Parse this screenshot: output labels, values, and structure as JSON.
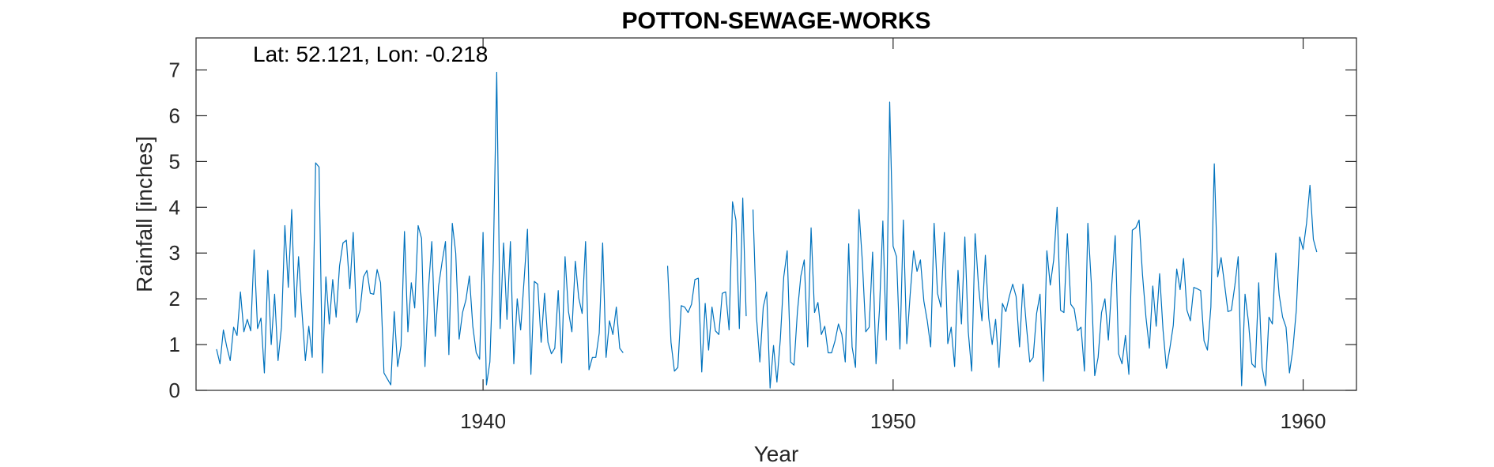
{
  "chart_data": {
    "type": "line",
    "title": "POTTON-SEWAGE-WORKS",
    "annotation": "Lat: 52.121, Lon: -0.218",
    "xlabel": "Year",
    "ylabel": "Rainfall [inches]",
    "xlim": [
      1933.0,
      1961.3
    ],
    "ylim": [
      0,
      7.7
    ],
    "x_ticks": [
      1940,
      1950,
      1960
    ],
    "x_tick_labels": [
      "1940",
      "1950",
      "1960"
    ],
    "y_ticks": [
      0,
      1,
      2,
      3,
      4,
      5,
      6,
      7
    ],
    "y_tick_labels": [
      "0",
      "1",
      "2",
      "3",
      "4",
      "5",
      "6",
      "7"
    ],
    "grid": false,
    "series": [
      {
        "color": "#0072BD",
        "segments": [
          {
            "x_start": 1933.5,
            "x_step": 0.08333,
            "values": [
              0.9,
              0.58,
              1.32,
              0.95,
              0.65,
              1.38,
              1.2,
              2.15,
              1.28,
              1.55,
              1.3,
              3.07,
              1.35,
              1.58,
              0.38,
              2.62,
              1.0,
              2.1,
              0.65,
              1.38,
              3.6,
              2.25,
              3.95,
              1.6,
              2.92,
              1.72,
              0.65,
              1.4,
              0.72,
              4.97,
              4.88,
              0.38,
              2.48,
              1.45,
              2.42,
              1.6,
              2.72,
              3.22,
              3.28,
              2.22,
              3.45,
              1.48,
              1.75,
              2.48,
              2.62,
              2.12,
              2.1,
              2.64,
              2.35,
              0.38,
              0.25,
              0.12,
              1.72,
              0.52,
              0.98,
              3.47,
              1.28,
              2.35,
              1.8,
              3.6,
              3.32,
              0.52,
              2.2,
              3.25,
              1.18,
              2.28,
              2.8,
              3.25,
              0.78,
              3.65,
              3.0,
              1.12,
              1.7,
              1.98,
              2.5,
              1.4,
              0.82,
              0.68,
              3.45,
              0.12,
              0.62,
              2.85,
              6.95,
              1.35,
              3.22,
              1.55,
              3.25,
              0.58,
              2.0,
              1.32,
              2.4,
              3.52,
              0.35,
              2.38,
              2.32,
              1.05,
              2.12,
              1.05,
              0.8,
              0.92,
              2.18,
              0.6,
              2.92,
              1.72,
              1.28,
              2.82,
              2.02,
              1.68,
              3.25,
              0.45,
              0.72,
              0.72,
              1.25,
              3.22,
              0.72,
              1.52,
              1.22,
              1.82,
              0.92,
              0.82
            ]
          },
          {
            "x_start": 1944.5,
            "x_step": 0.08333,
            "values": [
              2.72,
              1.05,
              0.42,
              0.5,
              1.85,
              1.82,
              1.7,
              1.88,
              2.42,
              2.45,
              0.4,
              1.9,
              0.88,
              1.82,
              1.3,
              1.22,
              2.12,
              2.15,
              1.32,
              4.12,
              3.72,
              1.35,
              4.2,
              1.62,
              null,
              3.95,
              1.62,
              0.62,
              1.82,
              2.15,
              0.05,
              0.98,
              0.18,
              1.12,
              2.48,
              3.05,
              0.62,
              0.55,
              1.72,
              2.5,
              2.85,
              0.95,
              3.55,
              1.7,
              1.92,
              1.22,
              1.4,
              0.82,
              0.82,
              1.08,
              1.45,
              1.22,
              0.62,
              3.2,
              0.95,
              0.5,
              3.95,
              2.82,
              1.28,
              1.38,
              3.02,
              0.58,
              1.75,
              3.7,
              1.1,
              6.3,
              3.15,
              2.92,
              0.9,
              3.72,
              1.02,
              2.1,
              3.05,
              2.6,
              2.85,
              1.95,
              1.52,
              0.95,
              3.65,
              2.12,
              1.82,
              3.45,
              1.02,
              1.38,
              0.52,
              2.62,
              1.45,
              3.35,
              1.28,
              0.42,
              3.42,
              2.28,
              1.52,
              2.95,
              1.58,
              1.0,
              1.55,
              0.5,
              1.9,
              1.72,
              2.05,
              2.32,
              2.05,
              0.95,
              2.32,
              1.42,
              0.62,
              0.72,
              1.68,
              2.1,
              0.2,
              3.05,
              2.3,
              2.85,
              4.0,
              1.75,
              1.7,
              3.42,
              1.88,
              1.78,
              1.3,
              1.38,
              0.42,
              3.65,
              2.35,
              0.32,
              0.72,
              1.7,
              2.0,
              1.1,
              2.32,
              3.38,
              0.8,
              0.58,
              1.2,
              0.35,
              3.5,
              3.55,
              3.72,
              2.52,
              1.6,
              0.92,
              2.28,
              1.4,
              2.55,
              1.32,
              0.48,
              0.92,
              1.42,
              2.65,
              2.2,
              2.88,
              1.75,
              1.52,
              2.25,
              2.22,
              2.18,
              1.08,
              0.88,
              1.82,
              4.95,
              2.48,
              2.9,
              2.32,
              1.72,
              1.75,
              2.28,
              2.92,
              0.1,
              2.1,
              1.5,
              0.58,
              0.5,
              2.35,
              0.5,
              0.1,
              1.6,
              1.45,
              3.0,
              2.08,
              1.6,
              1.38,
              0.38,
              0.9,
              1.75,
              3.35,
              3.08,
              3.65,
              4.48,
              3.3,
              3.02
            ]
          }
        ]
      }
    ]
  }
}
